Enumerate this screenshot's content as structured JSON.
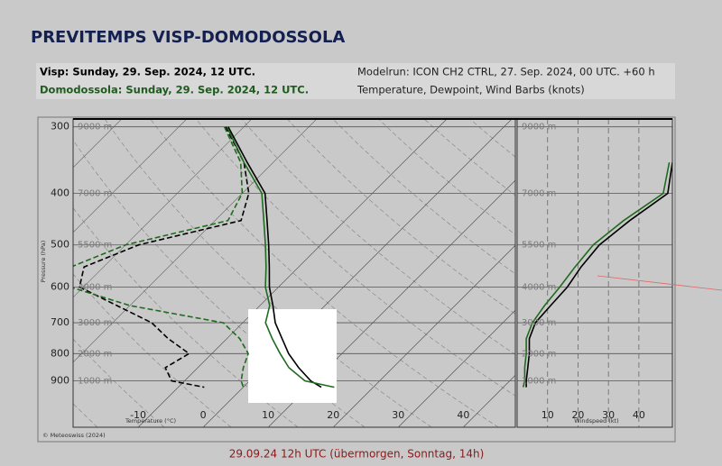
{
  "header": {
    "title": "PREVITEMPS VISP-DOMODOSSOLA",
    "info_left": [
      "Visp: Sunday, 29. Sep. 2024, 12 UTC.",
      "Domodossola: Sunday, 29. Sep. 2024, 12 UTC."
    ],
    "info_right": [
      "Modelrun: ICON CH2 CTRL, 27. Sep. 2024, 00 UTC. +60 h",
      "Temperature, Dewpoint, Wind Barbs (knots)"
    ]
  },
  "chart_data": [
    {
      "type": "skewt",
      "xlabel": "Temperature (°C)",
      "ylabel": "Pressure (hPa)",
      "log_y": true,
      "xlim": [
        -20,
        48
      ],
      "ylim": [
        1100,
        290
      ],
      "xticks": [
        -10,
        0,
        10,
        20,
        30,
        40
      ],
      "yticks": [
        300,
        400,
        500,
        600,
        700,
        800,
        900
      ],
      "altitude_labels": [
        "9000 m",
        "7000 m",
        "5500 m",
        "4000 m",
        "3000 m",
        "2000 m",
        "1000 m"
      ],
      "pressure": [
        300,
        350,
        400,
        450,
        500,
        550,
        600,
        650,
        700,
        750,
        800,
        850,
        900,
        925
      ],
      "series": [
        {
          "color": "#000000",
          "dashed": false,
          "values": [
            -42.4,
            -34,
            -26.5,
            -22,
            -18,
            -14.5,
            -11.4,
            -8,
            -5,
            -1.5,
            1.8,
            5.5,
            9.4,
            12
          ]
        },
        {
          "color": "#000000",
          "dashed": true,
          "values": [
            -42.8,
            -34.5,
            -29,
            -26,
            -38,
            -43,
            -40.6,
            -32,
            -24,
            -19,
            -13.5,
            -15,
            -12,
            -6
          ]
        },
        {
          "color": "#1f6b1f",
          "dashed": false,
          "values": [
            -42.6,
            -34.5,
            -27,
            -22.5,
            -18.5,
            -15,
            -12,
            -8.5,
            -6.5,
            -3,
            0.5,
            4,
            8.5,
            14
          ]
        },
        {
          "color": "#1f6b1f",
          "dashed": true,
          "values": [
            -43,
            -35,
            -30,
            -28,
            -40,
            -45,
            -42,
            -30,
            -13,
            -8,
            -4.4,
            -3,
            -1.3,
            0
          ]
        }
      ],
      "copyright": "© Meteoswiss (2024)"
    },
    {
      "type": "line",
      "xlabel": "Windspeed (kt)",
      "log_y": true,
      "xlim": [
        0,
        51
      ],
      "ylim": [
        1100,
        290
      ],
      "xticks": [
        10,
        20,
        30,
        40
      ],
      "pressure": [
        350,
        400,
        450,
        500,
        550,
        600,
        650,
        700,
        750,
        800,
        850,
        900,
        925
      ],
      "series": [
        {
          "color": "#000000",
          "values": [
            51,
            49.5,
            37,
            27,
            21,
            16.5,
            11,
            6,
            4,
            4,
            3.5,
            3,
            3
          ]
        },
        {
          "color": "#1f6b1f",
          "values": [
            50,
            48,
            35,
            25,
            19,
            14,
            9,
            5,
            3,
            3,
            2.5,
            2.5,
            2
          ]
        }
      ]
    }
  ],
  "footer": "29.09.24 12h UTC (übermorgen, Sonntag, 14h)"
}
